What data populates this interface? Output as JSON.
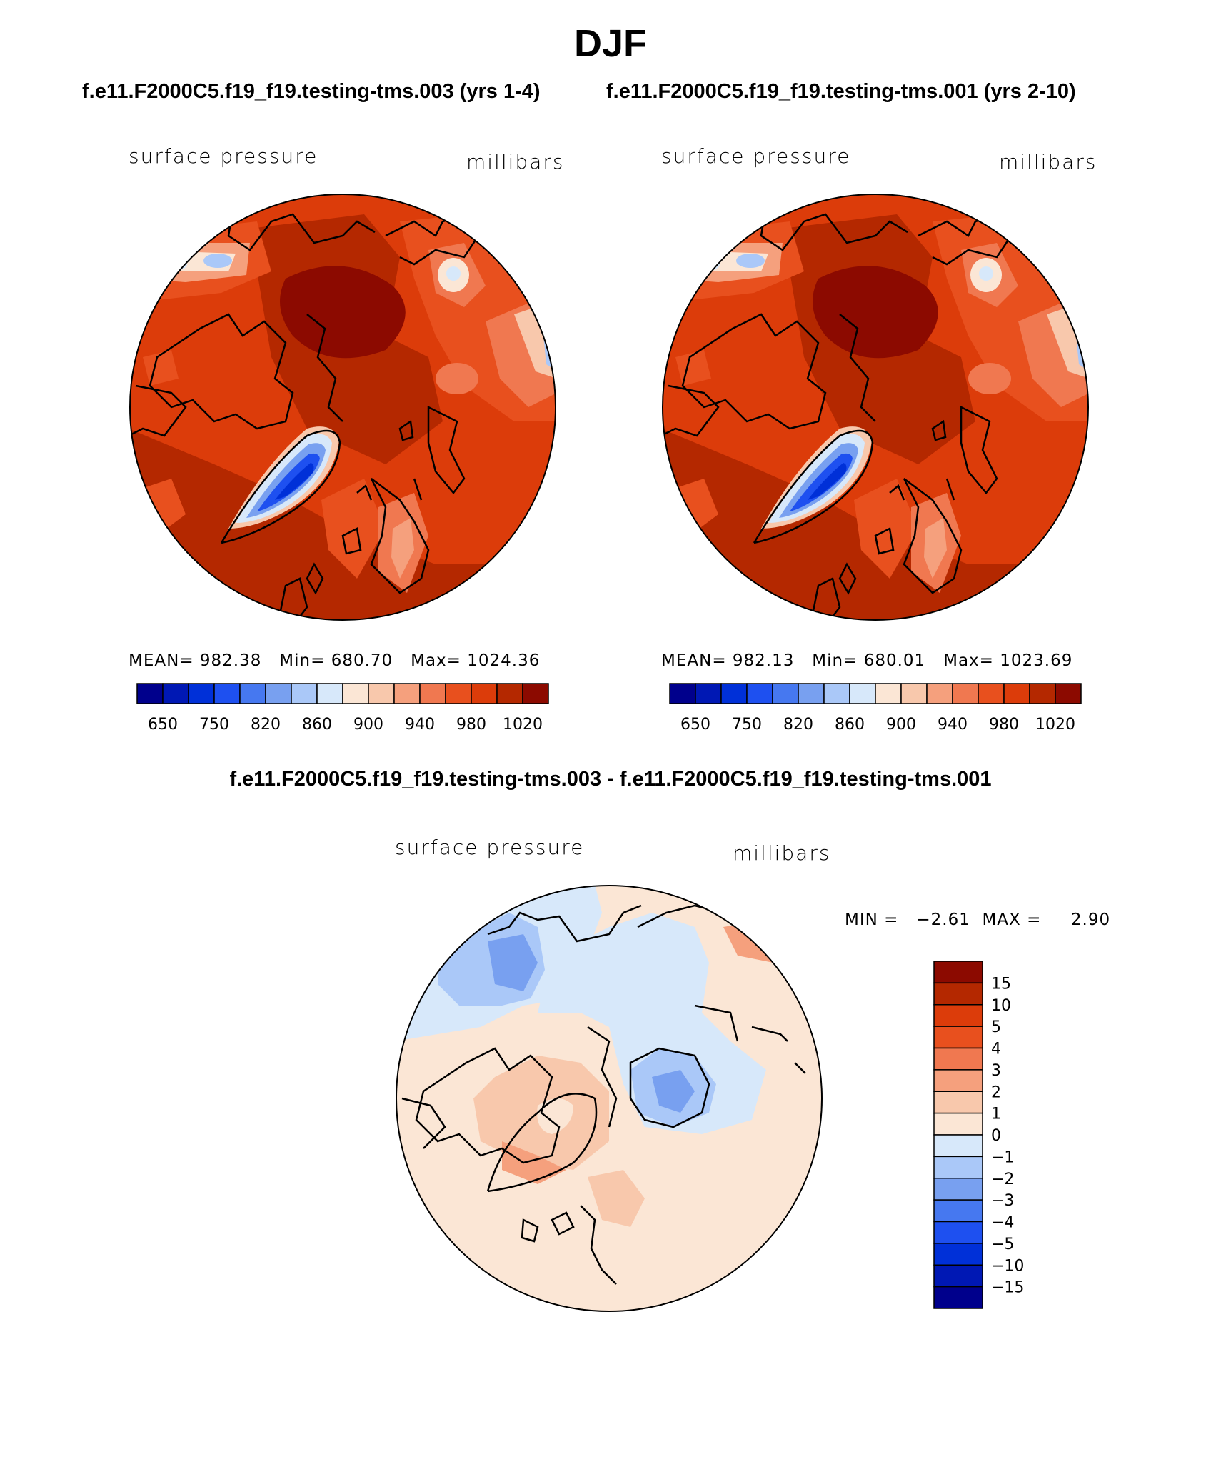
{
  "header": {
    "title": "DJF",
    "left_case": "f.e11.F2000C5.f19_f19.testing-tms.003 (yrs 1-4)",
    "right_case": "f.e11.F2000C5.f19_f19.testing-tms.001 (yrs 2-10)",
    "diff_title": "f.e11.F2000C5.f19_f19.testing-tms.003 - f.e11.F2000C5.f19_f19.testing-tms.001"
  },
  "panels": {
    "left": {
      "variable": "surface pressure",
      "units": "millibars",
      "stats": "MEAN= 982.38   Min= 680.70   Max= 1024.36"
    },
    "right": {
      "variable": "surface pressure",
      "units": "millibars",
      "stats": "MEAN= 982.13   Min= 680.01   Max= 1023.69"
    },
    "diff": {
      "variable": "surface pressure",
      "units": "millibars",
      "stats": "MIN =   −2.61  MAX =     2.90"
    }
  },
  "colorbars": {
    "abs_colors": [
      "#00008c",
      "#0018b4",
      "#0030d8",
      "#1e50f0",
      "#4678f0",
      "#78a0f0",
      "#aac8f8",
      "#d7e8fa",
      "#fbe6d5",
      "#f8c8ac",
      "#f5a07d",
      "#f07850",
      "#e8501e",
      "#dc3c0a",
      "#b42800",
      "#8c0a00"
    ],
    "abs_ticks": [
      "650",
      "750",
      "820",
      "860",
      "900",
      "940",
      "980",
      "1020"
    ],
    "diff_colors": [
      "#8c0a00",
      "#b42800",
      "#dc3c0a",
      "#e8501e",
      "#f07850",
      "#f5a07d",
      "#f8c8ac",
      "#fbe6d5",
      "#d7e8fa",
      "#aac8f8",
      "#78a0f0",
      "#4678f0",
      "#1e50f0",
      "#0030d8",
      "#0018b4",
      "#00008c"
    ],
    "diff_ticks": [
      "15",
      "10",
      "5",
      "4",
      "3",
      "2",
      "1",
      "0",
      "−1",
      "−2",
      "−3",
      "−4",
      "−5",
      "−10",
      "−15"
    ]
  }
}
